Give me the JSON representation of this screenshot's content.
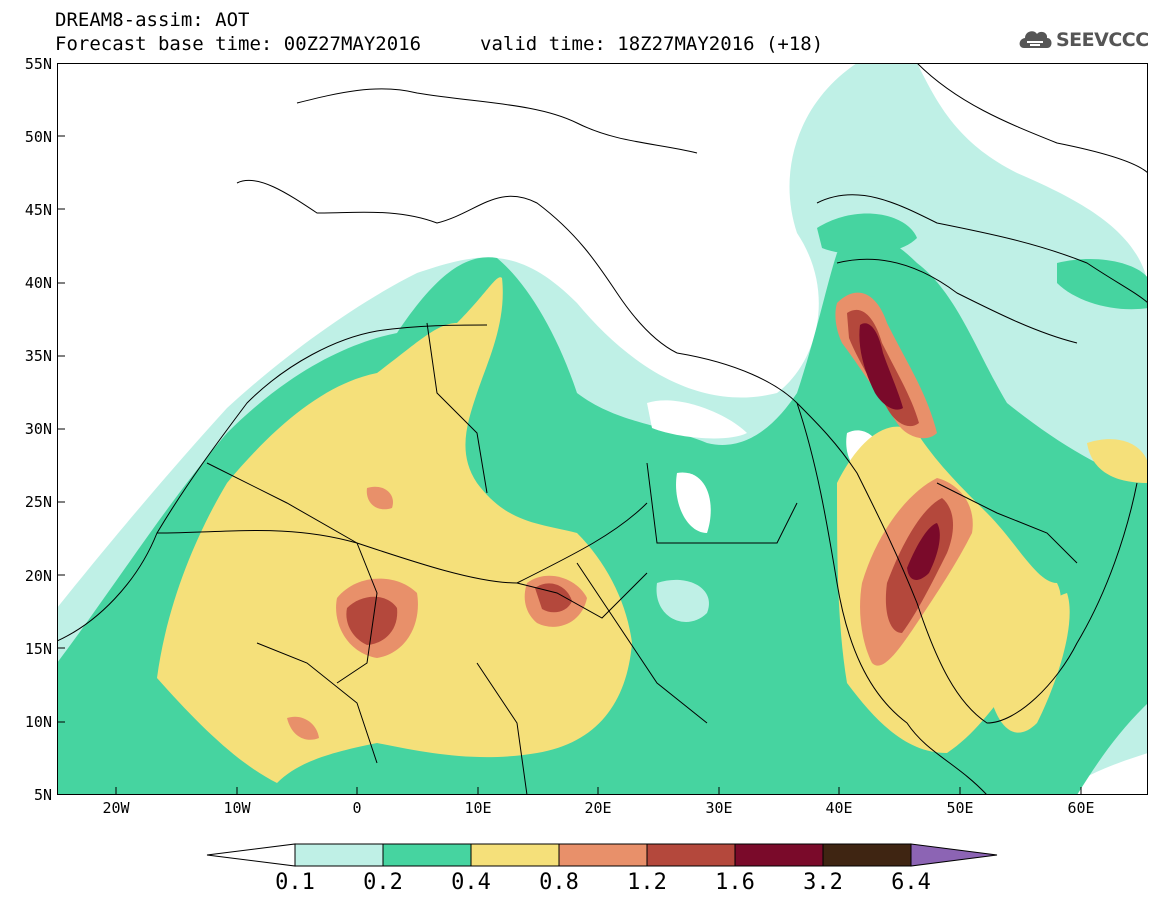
{
  "title": {
    "line1": "DREAM8-assim: AOT",
    "base_time": "Forecast base time: 00Z27MAY2016",
    "valid_time": "valid time: 18Z27MAY2016 (+18)"
  },
  "logo": {
    "text": "SEEVCCC",
    "icon": "cloud-icon"
  },
  "map": {
    "lon_range": [
      -25,
      65
    ],
    "lat_range": [
      5,
      55
    ],
    "lat_labels": [
      "55N",
      "50N",
      "45N",
      "40N",
      "35N",
      "30N",
      "25N",
      "20N",
      "15N",
      "10N",
      "5N"
    ],
    "lon_labels": [
      "20W",
      "10W",
      "0",
      "10E",
      "20E",
      "30E",
      "40E",
      "50E",
      "60E"
    ]
  },
  "colorbar": {
    "labels": [
      "0.1",
      "0.2",
      "0.4",
      "0.8",
      "1.2",
      "1.6",
      "3.2",
      "6.4"
    ],
    "colors": [
      "#ffffff",
      "#bff0e6",
      "#46d4a0",
      "#f5e07a",
      "#e8906a",
      "#b4483c",
      "#7a0a2a",
      "#3f2512",
      "#8c64b4"
    ]
  }
}
